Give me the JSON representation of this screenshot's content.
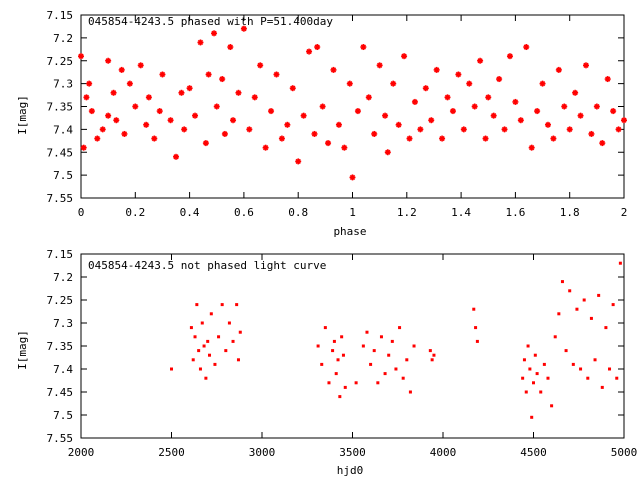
{
  "colors": {
    "points": "#ff0000",
    "axes": "#000000",
    "background": "#ffffff"
  },
  "chart_data": [
    {
      "type": "scatter",
      "title": "045854-4243.5 phased with P=51.400day",
      "xlabel": "phase",
      "ylabel": "I[mag]",
      "xlim": [
        0,
        2
      ],
      "ylim": [
        7.15,
        7.55
      ],
      "y_inverted": true,
      "grid": false,
      "xticks": [
        "0",
        "0.2",
        "0.4",
        "0.6",
        "0.8",
        "1",
        "1.2",
        "1.4",
        "1.6",
        "1.8",
        "2"
      ],
      "yticks": [
        "7.15",
        "7.2",
        "7.25",
        "7.3",
        "7.35",
        "7.4",
        "7.45",
        "7.5",
        "7.55"
      ],
      "marker": "star",
      "series": [
        {
          "x": [
            0.0,
            0.01,
            0.02,
            0.03,
            0.04,
            0.06,
            0.08,
            0.1,
            0.1,
            0.12,
            0.13,
            0.15,
            0.16,
            0.18,
            0.2,
            0.22,
            0.24,
            0.25,
            0.27,
            0.29,
            0.3,
            0.33,
            0.35,
            0.37,
            0.38,
            0.4,
            0.42,
            0.44,
            0.46,
            0.47,
            0.49,
            0.5,
            0.52,
            0.53,
            0.55,
            0.56,
            0.58,
            0.6,
            0.62,
            0.64,
            0.66,
            0.68,
            0.7,
            0.72,
            0.74,
            0.76,
            0.78,
            0.8,
            0.82,
            0.84,
            0.86,
            0.87,
            0.89,
            0.91,
            0.93,
            0.95,
            0.97,
            0.99,
            1.0,
            1.02,
            1.04,
            1.06,
            1.08,
            1.1,
            1.12,
            1.13,
            1.15,
            1.17,
            1.19,
            1.21,
            1.23,
            1.25,
            1.27,
            1.29,
            1.31,
            1.33,
            1.35,
            1.37,
            1.39,
            1.41,
            1.43,
            1.45,
            1.47,
            1.49,
            1.5,
            1.52,
            1.54,
            1.56,
            1.58,
            1.6,
            1.62,
            1.64,
            1.66,
            1.68,
            1.7,
            1.72,
            1.74,
            1.76,
            1.78,
            1.8,
            1.82,
            1.84,
            1.86,
            1.88,
            1.9,
            1.92,
            1.94,
            1.96,
            1.98,
            2.0
          ],
          "y": [
            7.24,
            7.44,
            7.33,
            7.3,
            7.36,
            7.42,
            7.4,
            7.25,
            7.37,
            7.32,
            7.38,
            7.27,
            7.41,
            7.3,
            7.35,
            7.26,
            7.39,
            7.33,
            7.42,
            7.36,
            7.28,
            7.38,
            7.46,
            7.32,
            7.4,
            7.31,
            7.37,
            7.21,
            7.43,
            7.28,
            7.19,
            7.35,
            7.29,
            7.41,
            7.22,
            7.38,
            7.32,
            7.18,
            7.4,
            7.33,
            7.26,
            7.44,
            7.36,
            7.28,
            7.42,
            7.39,
            7.31,
            7.47,
            7.37,
            7.23,
            7.41,
            7.22,
            7.35,
            7.43,
            7.27,
            7.39,
            7.44,
            7.3,
            7.505,
            7.36,
            7.22,
            7.33,
            7.41,
            7.26,
            7.37,
            7.45,
            7.3,
            7.39,
            7.24,
            7.42,
            7.34,
            7.4,
            7.31,
            7.38,
            7.27,
            7.42,
            7.33,
            7.36,
            7.28,
            7.4,
            7.3,
            7.35,
            7.25,
            7.42,
            7.33,
            7.37,
            7.29,
            7.4,
            7.24,
            7.34,
            7.38,
            7.22,
            7.44,
            7.36,
            7.3,
            7.39,
            7.42,
            7.27,
            7.35,
            7.4,
            7.32,
            7.37,
            7.26,
            7.41,
            7.35,
            7.43,
            7.29,
            7.36,
            7.4,
            7.38
          ]
        }
      ]
    },
    {
      "type": "scatter",
      "title": "045854-4243.5 not phased light curve",
      "xlabel": "hjd0",
      "ylabel": "I[mag]",
      "xlim": [
        2000,
        5000
      ],
      "ylim": [
        7.15,
        7.55
      ],
      "y_inverted": true,
      "grid": false,
      "xticks": [
        "2000",
        "2500",
        "3000",
        "3500",
        "4000",
        "4500",
        "5000"
      ],
      "yticks": [
        "7.15",
        "7.2",
        "7.25",
        "7.3",
        "7.35",
        "7.4",
        "7.45",
        "7.5",
        "7.55"
      ],
      "marker": "dot",
      "series": [
        {
          "x": [
            2500,
            2610,
            2620,
            2630,
            2640,
            2650,
            2660,
            2670,
            2680,
            2690,
            2700,
            2710,
            2720,
            2740,
            2760,
            2780,
            2800,
            2820,
            2840,
            2860,
            2870,
            2880,
            3310,
            3330,
            3350,
            3370,
            3390,
            3400,
            3410,
            3420,
            3430,
            3440,
            3450,
            3460,
            3520,
            3560,
            3580,
            3600,
            3620,
            3640,
            3660,
            3680,
            3700,
            3720,
            3740,
            3760,
            3780,
            3800,
            3820,
            3840,
            3930,
            3940,
            3950,
            4170,
            4180,
            4190,
            4440,
            4450,
            4460,
            4470,
            4480,
            4490,
            4500,
            4510,
            4520,
            4540,
            4560,
            4580,
            4600,
            4620,
            4640,
            4660,
            4680,
            4700,
            4720,
            4740,
            4760,
            4780,
            4800,
            4820,
            4840,
            4860,
            4880,
            4900,
            4920,
            4940,
            4960,
            4980
          ],
          "y": [
            7.4,
            7.31,
            7.38,
            7.33,
            7.26,
            7.36,
            7.4,
            7.3,
            7.35,
            7.42,
            7.34,
            7.37,
            7.28,
            7.39,
            7.33,
            7.26,
            7.36,
            7.3,
            7.34,
            7.26,
            7.38,
            7.32,
            7.35,
            7.39,
            7.31,
            7.43,
            7.36,
            7.34,
            7.41,
            7.38,
            7.46,
            7.33,
            7.37,
            7.44,
            7.43,
            7.35,
            7.32,
            7.39,
            7.36,
            7.43,
            7.33,
            7.41,
            7.37,
            7.34,
            7.4,
            7.31,
            7.42,
            7.38,
            7.45,
            7.35,
            7.36,
            7.38,
            7.37,
            7.27,
            7.31,
            7.34,
            7.42,
            7.38,
            7.45,
            7.35,
            7.4,
            7.505,
            7.43,
            7.37,
            7.41,
            7.45,
            7.39,
            7.42,
            7.48,
            7.33,
            7.28,
            7.21,
            7.36,
            7.23,
            7.39,
            7.27,
            7.4,
            7.25,
            7.42,
            7.29,
            7.38,
            7.24,
            7.44,
            7.31,
            7.4,
            7.26,
            7.42,
            7.17
          ]
        }
      ]
    }
  ]
}
